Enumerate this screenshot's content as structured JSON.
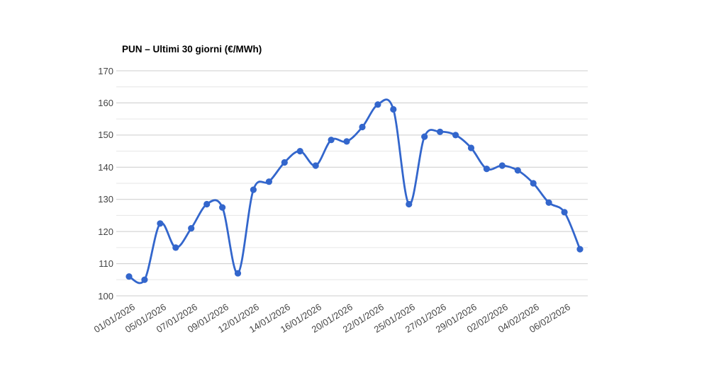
{
  "chart_data": {
    "type": "line",
    "title": "PUN – Ultimi 30 giorni (€/MWh)",
    "xlabel": "",
    "ylabel": "",
    "ylim": [
      100,
      170
    ],
    "y_ticks": [
      100,
      110,
      120,
      130,
      140,
      150,
      160,
      170
    ],
    "y_minor_step": 5,
    "grid": true,
    "legend": "none",
    "smooth": true,
    "marker": "circle",
    "x_tick_labels": [
      "01/01/2026",
      "05/01/2026",
      "07/01/2026",
      "09/01/2026",
      "12/01/2026",
      "14/01/2026",
      "16/01/2026",
      "20/01/2026",
      "22/01/2026",
      "25/01/2026",
      "27/01/2026",
      "29/01/2026",
      "02/02/2026",
      "04/02/2026",
      "06/02/2026"
    ],
    "x_tick_positions": [
      0,
      2,
      4,
      6,
      8,
      10,
      12,
      14,
      16,
      18,
      20,
      22,
      24,
      26,
      28
    ],
    "values": [
      106,
      105,
      122.5,
      115,
      121,
      128.5,
      127.5,
      107,
      133,
      135.5,
      141.5,
      145,
      140.5,
      148.5,
      148,
      152.5,
      159.5,
      158,
      128.5,
      149.5,
      151,
      150,
      146,
      139.5,
      140.5,
      139,
      135,
      129,
      126,
      114.5
    ]
  },
  "colors": {
    "series": "#3366cc",
    "grid_major": "#cccccc",
    "grid_minor": "#e6e6e6",
    "axis_text": "#444444",
    "title_text": "#000000",
    "background": "#ffffff"
  }
}
